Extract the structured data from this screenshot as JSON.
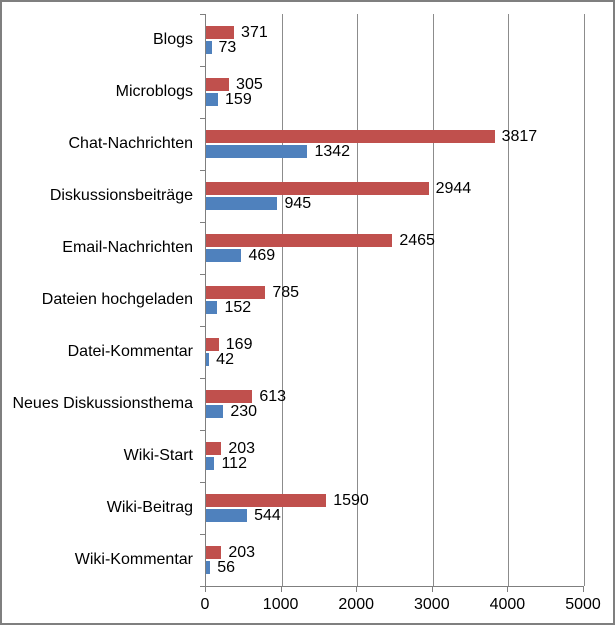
{
  "chart_data": {
    "type": "bar",
    "orientation": "horizontal",
    "categories": [
      "Blogs",
      "Microblogs",
      "Chat-Nachrichten",
      "Diskussionsbeiträge",
      "Email-Nachrichten",
      "Dateien hochgeladen",
      "Datei-Kommentar",
      "Neues Diskussionsthema",
      "Wiki-Start",
      "Wiki-Beitrag",
      "Wiki-Kommentar"
    ],
    "series": [
      {
        "name": "",
        "color": "#c0504d",
        "values": [
          371,
          305,
          3817,
          2944,
          2465,
          785,
          169,
          613,
          203,
          1590,
          203
        ]
      },
      {
        "name": "",
        "color": "#4f81bd",
        "values": [
          73,
          159,
          1342,
          945,
          469,
          152,
          42,
          230,
          112,
          544,
          56
        ]
      }
    ],
    "data_labels": true,
    "xlim": [
      0,
      5000
    ],
    "x_ticks": [
      "0",
      "1000",
      "2000",
      "3000",
      "4000",
      "5000"
    ],
    "grid": true,
    "legend": false,
    "title": ""
  },
  "colors": {
    "background": "#ffffff",
    "border": "#7f7f7f",
    "axis": "#7f7f7f",
    "gridline": "#8c8c8c",
    "text": "#000000",
    "series_red": "#c0504d",
    "series_blue": "#4f81bd"
  }
}
